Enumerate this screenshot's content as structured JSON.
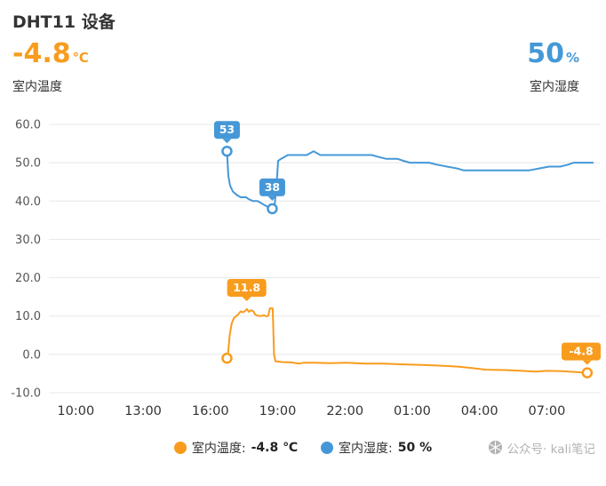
{
  "header": {
    "title": "DHT11 设备",
    "temperature": {
      "value": "-4.8",
      "unit": "℃",
      "label": "室内温度"
    },
    "humidity": {
      "value": "50",
      "unit": "%",
      "label": "室内湿度"
    }
  },
  "chart_data": {
    "type": "line",
    "title": "",
    "xlabel": "",
    "ylabel": "",
    "grid": true,
    "legend_position": "bottom",
    "x_axis": {
      "range_hours": [
        8.8,
        33.4
      ],
      "ticks": [
        {
          "t": 10,
          "label": "10:00"
        },
        {
          "t": 13,
          "label": "13:00"
        },
        {
          "t": 16,
          "label": "16:00"
        },
        {
          "t": 19,
          "label": "19:00"
        },
        {
          "t": 22,
          "label": "22:00"
        },
        {
          "t": 25,
          "label": "01:00"
        },
        {
          "t": 28,
          "label": "04:00"
        },
        {
          "t": 31,
          "label": "07:00"
        }
      ]
    },
    "y_axis": {
      "min": -10,
      "max": 60,
      "step": 10,
      "labels": [
        "60.0",
        "50.0",
        "40.0",
        "30.0",
        "20.0",
        "10.0",
        "0.0",
        "-10.0"
      ]
    },
    "series": [
      {
        "name": "室内湿度",
        "unit": "%",
        "color": "#4598D7",
        "current": 50,
        "points": [
          [
            16.74,
            53
          ],
          [
            16.8,
            46.5
          ],
          [
            16.88,
            44
          ],
          [
            17.0,
            42.5
          ],
          [
            17.1,
            42
          ],
          [
            17.2,
            41.5
          ],
          [
            17.35,
            41
          ],
          [
            17.6,
            41
          ],
          [
            17.7,
            40.5
          ],
          [
            17.9,
            40
          ],
          [
            18.1,
            40
          ],
          [
            18.25,
            39.5
          ],
          [
            18.4,
            39
          ],
          [
            18.55,
            38.5
          ],
          [
            18.68,
            38
          ],
          [
            18.85,
            38
          ],
          [
            18.95,
            44
          ],
          [
            19.02,
            50.5
          ],
          [
            19.15,
            51
          ],
          [
            19.3,
            51.5
          ],
          [
            19.45,
            52
          ],
          [
            20.3,
            52
          ],
          [
            20.45,
            52.5
          ],
          [
            20.6,
            53
          ],
          [
            20.75,
            52.5
          ],
          [
            20.9,
            52
          ],
          [
            23.2,
            52
          ],
          [
            23.5,
            51.5
          ],
          [
            23.85,
            51
          ],
          [
            24.35,
            51
          ],
          [
            24.6,
            50.5
          ],
          [
            24.9,
            50
          ],
          [
            25.75,
            50
          ],
          [
            26.1,
            49.5
          ],
          [
            26.55,
            49
          ],
          [
            27.0,
            48.5
          ],
          [
            27.3,
            48
          ],
          [
            30.2,
            48
          ],
          [
            30.65,
            48.5
          ],
          [
            31.1,
            49
          ],
          [
            31.6,
            49
          ],
          [
            31.95,
            49.5
          ],
          [
            32.2,
            50
          ],
          [
            33.05,
            50
          ]
        ],
        "markers": [
          [
            16.74,
            53
          ],
          [
            18.76,
            38
          ]
        ],
        "badges": [
          {
            "t": 16.74,
            "v": 53,
            "label": "53"
          },
          {
            "t": 18.76,
            "v": 38,
            "label": "38"
          }
        ]
      },
      {
        "name": "室内温度",
        "unit": "℃",
        "color": "#F89C1E",
        "current": -4.8,
        "points": [
          [
            16.74,
            -1
          ],
          [
            16.8,
            1
          ],
          [
            16.86,
            5
          ],
          [
            16.95,
            8
          ],
          [
            17.05,
            9.5
          ],
          [
            17.15,
            10
          ],
          [
            17.25,
            10.5
          ],
          [
            17.35,
            11.2
          ],
          [
            17.45,
            11
          ],
          [
            17.55,
            11.3
          ],
          [
            17.62,
            11.8
          ],
          [
            17.72,
            11.1
          ],
          [
            17.82,
            11.5
          ],
          [
            17.92,
            11.2
          ],
          [
            18.0,
            10.4
          ],
          [
            18.1,
            10.1
          ],
          [
            18.25,
            10
          ],
          [
            18.4,
            10.2
          ],
          [
            18.5,
            9.9
          ],
          [
            18.58,
            10.1
          ],
          [
            18.65,
            12
          ],
          [
            18.78,
            12
          ],
          [
            18.84,
            0
          ],
          [
            18.9,
            -1.8
          ],
          [
            19.2,
            -2
          ],
          [
            19.6,
            -2.1
          ],
          [
            19.95,
            -2.4
          ],
          [
            20.15,
            -2.2
          ],
          [
            20.7,
            -2.2
          ],
          [
            21.3,
            -2.3
          ],
          [
            22.1,
            -2.2
          ],
          [
            22.9,
            -2.4
          ],
          [
            23.7,
            -2.4
          ],
          [
            24.6,
            -2.6
          ],
          [
            25.6,
            -2.8
          ],
          [
            26.4,
            -3
          ],
          [
            27.1,
            -3.2
          ],
          [
            27.7,
            -3.6
          ],
          [
            28.3,
            -4
          ],
          [
            29.1,
            -4.1
          ],
          [
            29.9,
            -4.3
          ],
          [
            30.5,
            -4.5
          ],
          [
            31.0,
            -4.3
          ],
          [
            31.7,
            -4.4
          ],
          [
            32.3,
            -4.6
          ],
          [
            32.8,
            -4.8
          ]
        ],
        "markers": [
          [
            16.74,
            -1
          ],
          [
            32.8,
            -4.8
          ]
        ],
        "badges": [
          {
            "t": 17.62,
            "v": 11.8,
            "label": "11.8"
          },
          {
            "t": 32.8,
            "v": -4.8,
            "label": "-4.8"
          }
        ]
      }
    ]
  },
  "legend": [
    {
      "label": "室内温度:",
      "value": "-4.8 ℃",
      "color": "#F89C1E"
    },
    {
      "label": "室内湿度:",
      "value": "50 %",
      "color": "#4598D7"
    }
  ],
  "watermark": "公众号· kali笔记"
}
